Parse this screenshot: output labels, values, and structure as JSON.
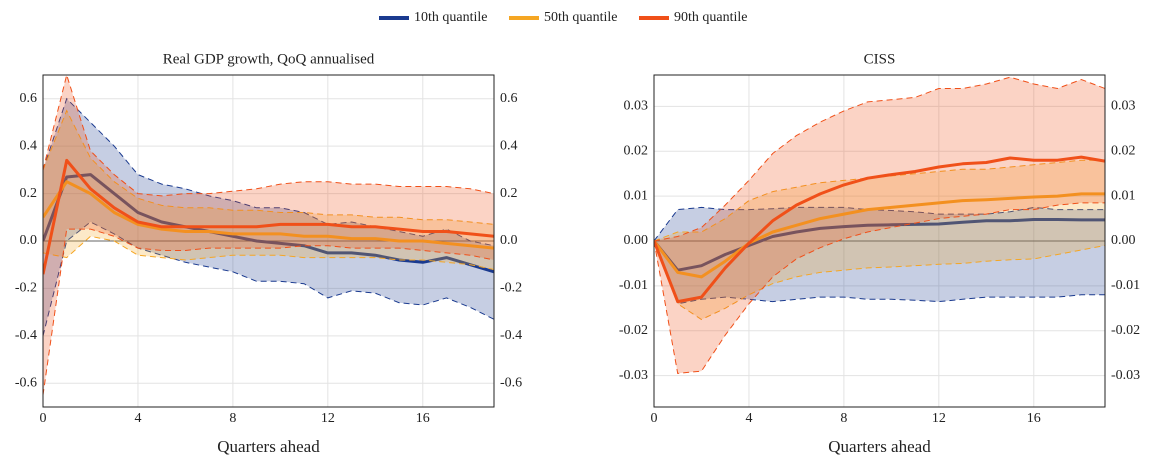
{
  "chart_data": [
    {
      "type": "line",
      "title": "Real GDP growth, QoQ annualised",
      "x_label": "Quarters ahead",
      "x": [
        0,
        1,
        2,
        3,
        4,
        5,
        6,
        7,
        8,
        9,
        10,
        11,
        12,
        13,
        14,
        15,
        16,
        17,
        18,
        19
      ],
      "xlim": [
        0,
        19
      ],
      "xticks": [
        0,
        4,
        8,
        12,
        16
      ],
      "ylim": [
        -0.7,
        0.7
      ],
      "yticks": [
        -0.6,
        -0.4,
        -0.2,
        {
          "value": 0,
          "label": "0.0"
        },
        0.2,
        0.4,
        0.6
      ],
      "hline": 0,
      "grid": true,
      "series": [
        {
          "name": "10th quantile",
          "color": "#1a3a8f",
          "values": [
            0.0,
            0.27,
            0.28,
            0.2,
            0.12,
            0.08,
            0.06,
            0.04,
            0.02,
            0.0,
            -0.01,
            -0.02,
            -0.05,
            -0.05,
            -0.06,
            -0.08,
            -0.09,
            -0.07,
            -0.1,
            -0.13
          ],
          "upper": [
            0.3,
            0.6,
            0.5,
            0.4,
            0.28,
            0.24,
            0.22,
            0.19,
            0.17,
            0.14,
            0.14,
            0.12,
            0.07,
            0.08,
            0.06,
            0.04,
            0.02,
            0.05,
            0.0,
            -0.02
          ],
          "lower": [
            -0.4,
            0.0,
            0.08,
            0.03,
            -0.03,
            -0.06,
            -0.09,
            -0.11,
            -0.13,
            -0.17,
            -0.17,
            -0.18,
            -0.24,
            -0.21,
            -0.22,
            -0.26,
            -0.27,
            -0.24,
            -0.28,
            -0.33
          ]
        },
        {
          "name": "50th quantile",
          "color": "#f5a623",
          "values": [
            0.1,
            0.25,
            0.2,
            0.12,
            0.07,
            0.05,
            0.04,
            0.04,
            0.03,
            0.03,
            0.03,
            0.02,
            0.02,
            0.01,
            0.01,
            0.0,
            0.0,
            -0.01,
            -0.02,
            -0.03
          ],
          "upper": [
            0.3,
            0.55,
            0.35,
            0.25,
            0.18,
            0.15,
            0.14,
            0.14,
            0.13,
            0.13,
            0.12,
            0.12,
            0.11,
            0.11,
            0.1,
            0.1,
            0.09,
            0.09,
            0.08,
            0.07
          ],
          "lower": [
            -0.05,
            -0.07,
            0.02,
            0.0,
            -0.06,
            -0.07,
            -0.08,
            -0.07,
            -0.06,
            -0.06,
            -0.06,
            -0.07,
            -0.07,
            -0.07,
            -0.07,
            -0.08,
            -0.08,
            -0.09,
            -0.1,
            -0.12
          ]
        },
        {
          "name": "90th quantile",
          "color": "#f05019",
          "values": [
            -0.14,
            0.34,
            0.22,
            0.14,
            0.08,
            0.06,
            0.06,
            0.06,
            0.06,
            0.06,
            0.07,
            0.07,
            0.07,
            0.06,
            0.06,
            0.05,
            0.04,
            0.04,
            0.03,
            0.02
          ],
          "upper": [
            0.3,
            0.7,
            0.38,
            0.28,
            0.2,
            0.19,
            0.2,
            0.2,
            0.21,
            0.22,
            0.24,
            0.25,
            0.25,
            0.24,
            0.24,
            0.23,
            0.23,
            0.23,
            0.22,
            0.2
          ],
          "lower": [
            -0.65,
            0.05,
            0.05,
            0.02,
            -0.03,
            -0.04,
            -0.04,
            -0.03,
            -0.03,
            -0.03,
            -0.03,
            -0.02,
            -0.02,
            -0.03,
            -0.03,
            -0.03,
            -0.04,
            -0.05,
            -0.06,
            -0.08
          ]
        }
      ]
    },
    {
      "type": "line",
      "title": "CISS",
      "x_label": "Quarters ahead",
      "x": [
        0,
        1,
        2,
        3,
        4,
        5,
        6,
        7,
        8,
        9,
        10,
        11,
        12,
        13,
        14,
        15,
        16,
        17,
        18,
        19
      ],
      "xlim": [
        0,
        19
      ],
      "xticks": [
        0,
        4,
        8,
        12,
        16
      ],
      "ylim": [
        -0.037,
        0.037
      ],
      "yticks": [
        -0.03,
        -0.02,
        -0.01,
        {
          "value": 0,
          "label": "0.00"
        },
        0.01,
        0.02,
        0.03
      ],
      "hline": 0,
      "grid": true,
      "series": [
        {
          "name": "10th quantile",
          "color": "#1a3a8f",
          "values": [
            0,
            -0.0065,
            -0.0055,
            -0.003,
            -0.001,
            0.001,
            0.002,
            0.0028,
            0.0032,
            0.0035,
            0.0036,
            0.0037,
            0.0038,
            0.0042,
            0.0045,
            0.0045,
            0.0048,
            0.0048,
            0.0047,
            0.0047
          ],
          "upper": [
            0,
            0.007,
            0.0075,
            0.007,
            0.007,
            0.0072,
            0.0075,
            0.0075,
            0.0075,
            0.007,
            0.0068,
            0.0065,
            0.006,
            0.006,
            0.006,
            0.0065,
            0.0075,
            0.007,
            0.007,
            0.007
          ],
          "lower": [
            0,
            -0.014,
            -0.013,
            -0.0125,
            -0.013,
            -0.0135,
            -0.013,
            -0.0125,
            -0.0125,
            -0.013,
            -0.013,
            -0.0132,
            -0.0135,
            -0.013,
            -0.0125,
            -0.0125,
            -0.0125,
            -0.0125,
            -0.012,
            -0.012
          ]
        },
        {
          "name": "50th quantile",
          "color": "#f5a623",
          "values": [
            0,
            -0.007,
            -0.008,
            -0.0045,
            -0.0005,
            0.002,
            0.0035,
            0.005,
            0.006,
            0.007,
            0.0075,
            0.008,
            0.0085,
            0.009,
            0.0092,
            0.0095,
            0.0098,
            0.01,
            0.0105,
            0.0105
          ],
          "upper": [
            0,
            0.002,
            0.002,
            0.005,
            0.009,
            0.011,
            0.012,
            0.013,
            0.0135,
            0.014,
            0.0145,
            0.015,
            0.0155,
            0.016,
            0.016,
            0.0165,
            0.017,
            0.0175,
            0.018,
            0.018
          ],
          "lower": [
            0,
            -0.014,
            -0.0175,
            -0.015,
            -0.012,
            -0.0095,
            -0.008,
            -0.007,
            -0.0065,
            -0.006,
            -0.0058,
            -0.0055,
            -0.0052,
            -0.005,
            -0.0045,
            -0.0042,
            -0.004,
            -0.003,
            -0.002,
            -0.001
          ]
        },
        {
          "name": "90th quantile",
          "color": "#f05019",
          "values": [
            0,
            -0.0135,
            -0.0125,
            -0.006,
            -0.0005,
            0.0045,
            0.008,
            0.0105,
            0.0125,
            0.014,
            0.0148,
            0.0155,
            0.0165,
            0.0172,
            0.0175,
            0.0185,
            0.018,
            0.018,
            0.0187,
            0.0178
          ],
          "upper": [
            0,
            0.001,
            0.003,
            0.008,
            0.0135,
            0.0195,
            0.0235,
            0.0265,
            0.029,
            0.031,
            0.0315,
            0.032,
            0.034,
            0.034,
            0.035,
            0.0365,
            0.035,
            0.034,
            0.036,
            0.034
          ],
          "lower": [
            0,
            -0.0295,
            -0.029,
            -0.021,
            -0.014,
            -0.008,
            -0.004,
            -0.0015,
            0.0005,
            0.002,
            0.003,
            0.004,
            0.005,
            0.0055,
            0.006,
            0.007,
            0.007,
            0.008,
            0.0085,
            0.0085
          ]
        }
      ]
    }
  ]
}
